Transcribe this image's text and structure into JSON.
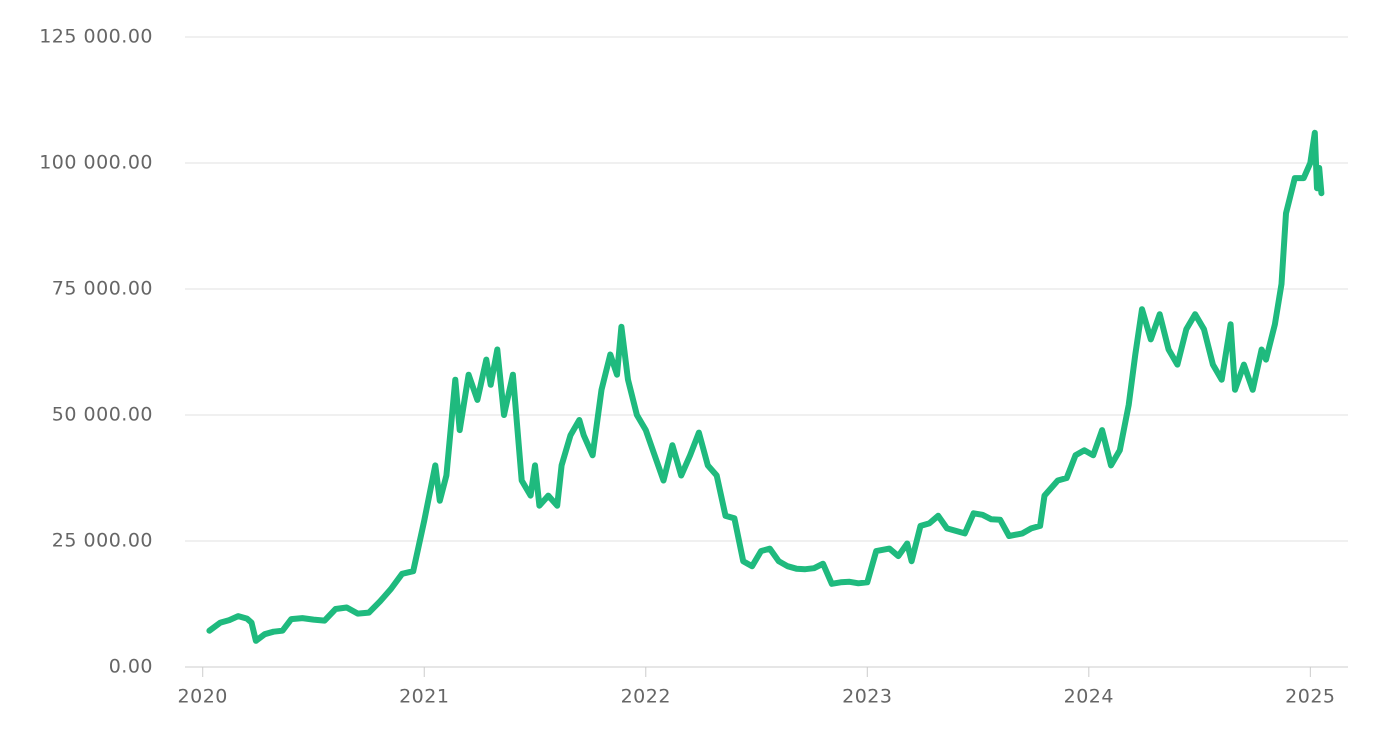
{
  "chart_data": {
    "type": "line",
    "x": [
      2020.03,
      2020.08,
      2020.12,
      2020.16,
      2020.2,
      2020.22,
      2020.24,
      2020.28,
      2020.32,
      2020.36,
      2020.4,
      2020.45,
      2020.5,
      2020.55,
      2020.6,
      2020.65,
      2020.7,
      2020.75,
      2020.8,
      2020.85,
      2020.9,
      2020.95,
      2021.0,
      2021.05,
      2021.07,
      2021.1,
      2021.14,
      2021.16,
      2021.2,
      2021.24,
      2021.28,
      2021.3,
      2021.33,
      2021.36,
      2021.4,
      2021.44,
      2021.48,
      2021.5,
      2021.52,
      2021.56,
      2021.6,
      2021.62,
      2021.66,
      2021.7,
      2021.72,
      2021.76,
      2021.8,
      2021.84,
      2021.87,
      2021.89,
      2021.92,
      2021.96,
      2022.0,
      2022.04,
      2022.08,
      2022.12,
      2022.16,
      2022.2,
      2022.24,
      2022.28,
      2022.32,
      2022.36,
      2022.4,
      2022.44,
      2022.48,
      2022.52,
      2022.56,
      2022.6,
      2022.64,
      2022.68,
      2022.72,
      2022.76,
      2022.8,
      2022.84,
      2022.88,
      2022.92,
      2022.96,
      2023.0,
      2023.04,
      2023.1,
      2023.14,
      2023.18,
      2023.2,
      2023.24,
      2023.28,
      2023.32,
      2023.36,
      2023.4,
      2023.44,
      2023.48,
      2023.52,
      2023.56,
      2023.6,
      2023.64,
      2023.7,
      2023.74,
      2023.78,
      2023.8,
      2023.86,
      2023.9,
      2023.94,
      2023.98,
      2024.02,
      2024.06,
      2024.1,
      2024.14,
      2024.18,
      2024.21,
      2024.24,
      2024.28,
      2024.32,
      2024.36,
      2024.4,
      2024.44,
      2024.48,
      2024.52,
      2024.56,
      2024.6,
      2024.64,
      2024.66,
      2024.7,
      2024.74,
      2024.78,
      2024.8,
      2024.84,
      2024.87,
      2024.89,
      2024.93,
      2024.97,
      2025.0,
      2025.02,
      2025.03,
      2025.04,
      2025.05
    ],
    "series": [
      {
        "color": "#1fba7e",
        "values": [
          7200,
          8800,
          9300,
          10100,
          9600,
          8800,
          5200,
          6500,
          7000,
          7200,
          9500,
          9700,
          9400,
          9200,
          11500,
          11800,
          10600,
          10800,
          13000,
          15500,
          18500,
          19000,
          29000,
          40000,
          33000,
          38000,
          57000,
          47000,
          58000,
          53000,
          61000,
          56000,
          63000,
          50000,
          58000,
          37000,
          34000,
          40000,
          32000,
          34000,
          32000,
          40000,
          46000,
          49000,
          46000,
          42000,
          55000,
          62000,
          58000,
          67500,
          57000,
          50000,
          47000,
          42000,
          37000,
          44000,
          38000,
          42000,
          46500,
          40000,
          38000,
          30000,
          29500,
          21000,
          20000,
          23000,
          23500,
          21000,
          20000,
          19500,
          19400,
          19600,
          20500,
          16500,
          16800,
          16900,
          16600,
          16800,
          23000,
          23500,
          22000,
          24500,
          21000,
          28000,
          28500,
          30000,
          27500,
          27000,
          26500,
          30500,
          30200,
          29300,
          29200,
          26000,
          26500,
          27500,
          28000,
          34000,
          37000,
          37500,
          42000,
          43000,
          42000,
          47000,
          40000,
          43000,
          52000,
          62000,
          71000,
          65000,
          70000,
          63000,
          60000,
          67000,
          70000,
          67000,
          60000,
          57000,
          68000,
          55000,
          60000,
          55000,
          63000,
          61000,
          68000,
          76000,
          90000,
          97000,
          97000,
          100000,
          106000,
          95000,
          99000,
          94000
        ]
      }
    ],
    "xlim": [
      2019.92,
      2025.17
    ],
    "xticks": [
      2020,
      2021,
      2022,
      2023,
      2024,
      2025
    ],
    "ylim": [
      0,
      125000
    ],
    "yticks": [
      {
        "value": 0,
        "label": "0.00"
      },
      {
        "value": 25000,
        "label": "25 000.00"
      },
      {
        "value": 50000,
        "label": "50 000.00"
      },
      {
        "value": 75000,
        "label": "75 000.00"
      },
      {
        "value": 100000,
        "label": "100 000.00"
      },
      {
        "value": 125000,
        "label": "125 000.00"
      }
    ],
    "grid": true
  }
}
